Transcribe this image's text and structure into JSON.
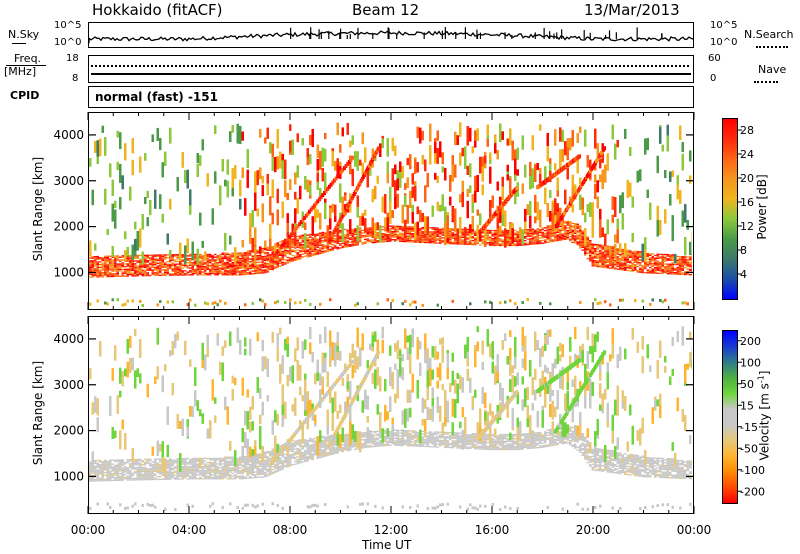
{
  "header": {
    "station": "Hokkaido (fitACF)",
    "beam": "Beam 12",
    "date": "13/Mar/2013"
  },
  "panels": {
    "nsky_label": "N.Sky",
    "nsky_scale_top": "10^5",
    "nsky_scale_bottom": "10^0",
    "nsearch_label": "N.Search",
    "freq_label_1": "Freq.",
    "freq_label_2": "[MHz]",
    "freq_scale_top": "18",
    "freq_scale_bottom": "8",
    "nave_scale_top": "60",
    "nave_scale_bottom": "0",
    "nave_label": "Nave",
    "cpid_label": "CPID",
    "cpid_value": "normal (fast) -151"
  },
  "colors": {
    "power_scale": [
      "#0000ff",
      "#1a4fa8",
      "#3d7a6b",
      "#4a9a4a",
      "#8cc83c",
      "#f0b41e",
      "#f5961e",
      "#ff6414",
      "#ff2a0a",
      "#ff0000"
    ],
    "velocity_scale": [
      "#ff0000",
      "#ff4a00",
      "#ff8a00",
      "#ffb430",
      "#e8c878",
      "#c8c8c8",
      "#c8c8c8",
      "#6ed63c",
      "#4cb040",
      "#2e7d8a",
      "#1a3cd2",
      "#0000ff"
    ]
  },
  "chart_data": [
    {
      "type": "heatmap",
      "title": "",
      "ylabel": "Slant Range [km]",
      "xlabel": "Time UT",
      "xlim": [
        "00:00",
        "24:00"
      ],
      "ylim": [
        180,
        4500
      ],
      "x_ticks": [
        "00:00",
        "04:00",
        "08:00",
        "12:00",
        "16:00",
        "20:00",
        "00:00"
      ],
      "y_ticks": [
        1000,
        2000,
        3000,
        4000
      ],
      "colorbar": {
        "label": "Power [dB]",
        "ticks": [
          4,
          8,
          12,
          16,
          20,
          24,
          28
        ],
        "range": [
          0,
          30
        ]
      },
      "echo_band_km": {
        "hours": [
          0,
          2,
          4,
          6,
          7,
          8,
          10,
          11,
          12,
          14,
          16,
          17,
          18,
          19,
          19.5,
          20,
          22,
          24
        ],
        "lower": [
          850,
          880,
          900,
          900,
          950,
          1200,
          1500,
          1600,
          1650,
          1600,
          1550,
          1550,
          1600,
          1700,
          1500,
          1100,
          950,
          900
        ],
        "upper": [
          1300,
          1350,
          1350,
          1400,
          1500,
          1750,
          1900,
          1950,
          2000,
          1950,
          1900,
          1900,
          1950,
          2100,
          2000,
          1600,
          1400,
          1300
        ]
      }
    },
    {
      "type": "heatmap",
      "title": "",
      "ylabel": "Slant Range [km]",
      "xlabel": "Time UT",
      "xlim": [
        "00:00",
        "24:00"
      ],
      "ylim": [
        180,
        4500
      ],
      "x_ticks": [
        "00:00",
        "04:00",
        "08:00",
        "12:00",
        "16:00",
        "20:00",
        "00:00"
      ],
      "y_ticks": [
        1000,
        2000,
        3000,
        4000
      ],
      "colorbar": {
        "label": "Velocity [m s-1]",
        "ticks": [
          200,
          100,
          50,
          15,
          -15,
          -50,
          -100,
          -200
        ],
        "range": [
          -250,
          250
        ]
      }
    }
  ],
  "axes": {
    "ylabel": "Slant Range [km]",
    "xlabel": "Time UT",
    "power_label": "Power [dB]",
    "velocity_label": "Velocity [m s",
    "velocity_label_sup": "-1",
    "velocity_label_end": "]"
  }
}
